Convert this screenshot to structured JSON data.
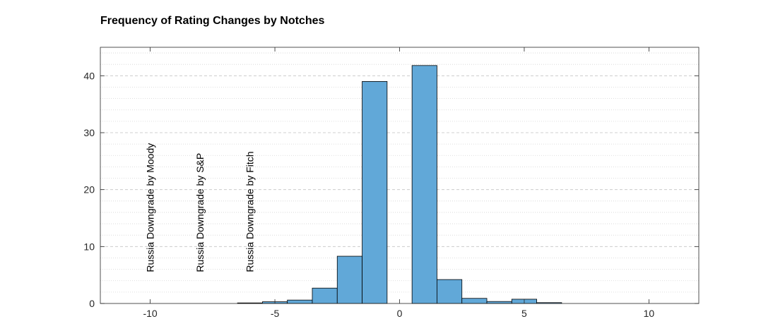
{
  "chart_data": {
    "type": "bar",
    "title": "Frequency of Rating Changes by Notches",
    "xlabel": "",
    "ylabel": "",
    "xlim": [
      -12,
      12
    ],
    "ylim": [
      0,
      45
    ],
    "xticks": [
      -10,
      -5,
      0,
      5,
      10
    ],
    "xtick_labels": [
      "-10",
      "-5",
      "0",
      "5",
      "10"
    ],
    "yticks": [
      0,
      10,
      20,
      30,
      40
    ],
    "ytick_labels": [
      "0",
      "10",
      "20",
      "30",
      "40"
    ],
    "bar_width": 1,
    "x": [
      -6,
      -5,
      -4,
      -3,
      -2,
      -1,
      1,
      2,
      3,
      4,
      5,
      6
    ],
    "values": [
      0.1,
      0.3,
      0.6,
      2.7,
      8.3,
      39.0,
      41.8,
      4.2,
      0.9,
      0.35,
      0.75,
      0.15
    ],
    "bar_color": "#61a8d8",
    "edge_color": "#000000",
    "grid": true,
    "minor_grid": true,
    "annotations": [
      {
        "text": "Russia Downgrade by Moody",
        "x": -10,
        "y": 5.5,
        "rotation": 90
      },
      {
        "text": "Russia Downgrade by S&P",
        "x": -8,
        "y": 5.5,
        "rotation": 90
      },
      {
        "text": "Russia Downgrade by Fitch",
        "x": -6,
        "y": 5.5,
        "rotation": 90
      }
    ]
  }
}
